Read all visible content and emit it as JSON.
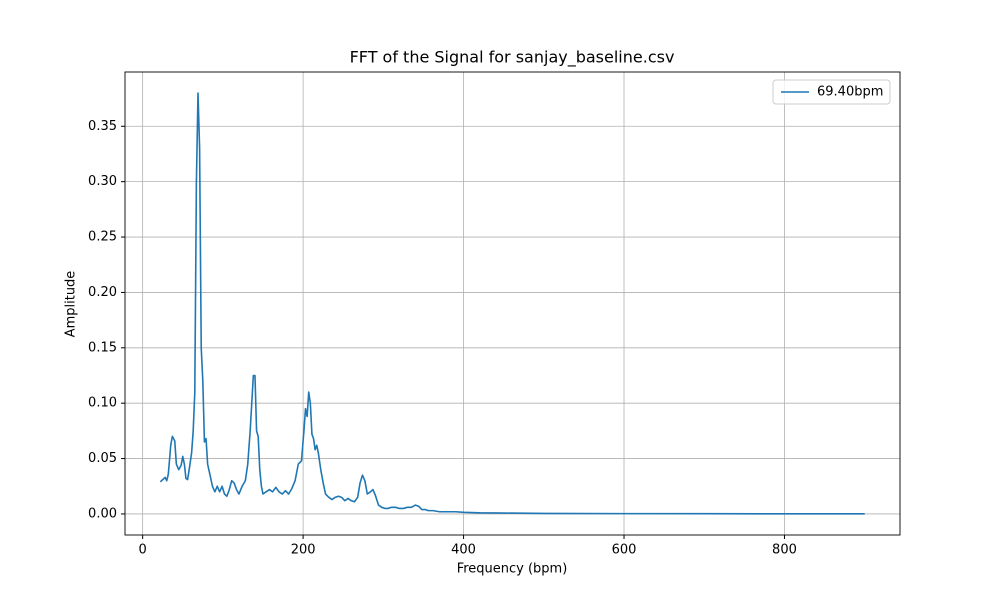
{
  "chart_data": {
    "type": "line",
    "title": "FFT of the Signal for sanjay_baseline.csv",
    "xlabel": "Frequency (bpm)",
    "ylabel": "Amplitude",
    "x": [
      22,
      25,
      28,
      30,
      32,
      35,
      37,
      40,
      42,
      45,
      48,
      50,
      52,
      54,
      56,
      58,
      61,
      63,
      65,
      67,
      69,
      71,
      73,
      75,
      77,
      79,
      81,
      84,
      87,
      90,
      93,
      96,
      99,
      102,
      105,
      108,
      111,
      114,
      117,
      120,
      124,
      128,
      131,
      134,
      136,
      138,
      140,
      142,
      144,
      146,
      148,
      150,
      154,
      158,
      162,
      166,
      170,
      174,
      178,
      182,
      186,
      190,
      194,
      198,
      201,
      203,
      205,
      207,
      209,
      211,
      213,
      215,
      217,
      219,
      222,
      225,
      228,
      232,
      236,
      240,
      244,
      248,
      252,
      256,
      260,
      264,
      268,
      271,
      274,
      277,
      280,
      284,
      287,
      290,
      294,
      298,
      302,
      306,
      310,
      315,
      320,
      325,
      330,
      335,
      340,
      344,
      348,
      352,
      356,
      362,
      370,
      380,
      390,
      400,
      420,
      450,
      500,
      600,
      700,
      800,
      900
    ],
    "series": [
      {
        "name": "69.40bpm",
        "color": "#1f77b4",
        "values": [
          0.029,
          0.031,
          0.033,
          0.03,
          0.036,
          0.062,
          0.07,
          0.066,
          0.045,
          0.04,
          0.044,
          0.052,
          0.045,
          0.032,
          0.031,
          0.04,
          0.055,
          0.075,
          0.11,
          0.3,
          0.38,
          0.33,
          0.15,
          0.12,
          0.065,
          0.068,
          0.045,
          0.035,
          0.025,
          0.02,
          0.025,
          0.02,
          0.025,
          0.018,
          0.016,
          0.022,
          0.03,
          0.028,
          0.022,
          0.018,
          0.025,
          0.03,
          0.045,
          0.075,
          0.1,
          0.125,
          0.125,
          0.075,
          0.07,
          0.04,
          0.025,
          0.018,
          0.02,
          0.022,
          0.02,
          0.024,
          0.02,
          0.018,
          0.021,
          0.018,
          0.023,
          0.03,
          0.045,
          0.048,
          0.075,
          0.095,
          0.088,
          0.11,
          0.1,
          0.072,
          0.068,
          0.058,
          0.062,
          0.055,
          0.04,
          0.028,
          0.018,
          0.015,
          0.013,
          0.015,
          0.016,
          0.015,
          0.012,
          0.014,
          0.012,
          0.011,
          0.015,
          0.028,
          0.035,
          0.03,
          0.018,
          0.02,
          0.022,
          0.017,
          0.008,
          0.006,
          0.005,
          0.005,
          0.006,
          0.006,
          0.005,
          0.005,
          0.006,
          0.006,
          0.008,
          0.007,
          0.004,
          0.004,
          0.003,
          0.003,
          0.002,
          0.002,
          0.002,
          0.0015,
          0.001,
          0.0008,
          0.0005,
          0.0003,
          0.0002,
          0.0001,
          0.0001
        ]
      }
    ],
    "xlim": [
      -22,
      944
    ],
    "ylim": [
      -0.019,
      0.399
    ],
    "xticks": [
      0,
      200,
      400,
      600,
      800
    ],
    "yticks": [
      {
        "value": 0,
        "label": "0.00"
      },
      {
        "value": 0.05,
        "label": "0.05"
      },
      {
        "value": 0.1,
        "label": "0.10"
      },
      {
        "value": 0.15,
        "label": "0.15"
      },
      {
        "value": 0.2,
        "label": "0.20"
      },
      {
        "value": 0.25,
        "label": "0.25"
      },
      {
        "value": 0.3,
        "label": "0.30"
      },
      {
        "value": 0.35,
        "label": "0.35"
      }
    ],
    "grid": true,
    "legend": "upper right"
  }
}
